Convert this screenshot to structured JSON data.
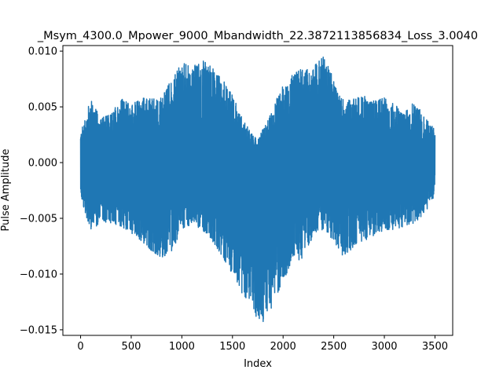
{
  "chart_data": {
    "type": "line",
    "title": "_Msym_4300.0_Mpower_9000_Mbandwidth_22.3872113856834_Loss_3.0040",
    "xlabel": "Index",
    "ylabel": "Pulse Amplitude",
    "xlim": [
      -175,
      3675
    ],
    "ylim": [
      -0.0155,
      0.0105
    ],
    "xticks": [
      0,
      500,
      1000,
      1500,
      2000,
      2500,
      3000,
      3500
    ],
    "yticks": [
      -0.015,
      -0.01,
      -0.005,
      0.0,
      0.005,
      0.01
    ],
    "xtick_labels": [
      "0",
      "500",
      "1000",
      "1500",
      "2000",
      "2500",
      "3000",
      "3500"
    ],
    "ytick_labels": [
      "−0.015",
      "−0.010",
      "−0.005",
      "0.000",
      "0.005",
      "0.010"
    ],
    "grid": false,
    "series": [
      {
        "color": "#1f77b4",
        "n_points": 3500,
        "x_range": [
          0,
          3500
        ],
        "envelope_x": [
          0,
          100,
          200,
          300,
          400,
          500,
          600,
          700,
          800,
          900,
          1000,
          1100,
          1200,
          1300,
          1400,
          1500,
          1600,
          1700,
          1750,
          1800,
          1900,
          2000,
          2100,
          2200,
          2300,
          2400,
          2500,
          2600,
          2700,
          2800,
          2900,
          3000,
          3100,
          3200,
          3300,
          3400,
          3500
        ],
        "envelope_max": [
          0.0027,
          0.0057,
          0.004,
          0.0043,
          0.0058,
          0.0053,
          0.0058,
          0.0057,
          0.0058,
          0.0075,
          0.009,
          0.0085,
          0.0093,
          0.0087,
          0.0075,
          0.006,
          0.004,
          0.0025,
          0.002,
          0.003,
          0.0048,
          0.0072,
          0.0079,
          0.0085,
          0.0086,
          0.0095,
          0.0075,
          0.0055,
          0.0057,
          0.006,
          0.0055,
          0.0058,
          0.0052,
          0.0045,
          0.0055,
          0.004,
          0.003
        ],
        "envelope_min": [
          -0.003,
          -0.0062,
          -0.0053,
          -0.0054,
          -0.0057,
          -0.0063,
          -0.007,
          -0.0079,
          -0.0085,
          -0.008,
          -0.006,
          -0.0055,
          -0.006,
          -0.007,
          -0.0084,
          -0.01,
          -0.0118,
          -0.0128,
          -0.0143,
          -0.0143,
          -0.0128,
          -0.0105,
          -0.009,
          -0.0085,
          -0.0065,
          -0.006,
          -0.007,
          -0.0085,
          -0.0075,
          -0.007,
          -0.0066,
          -0.006,
          -0.006,
          -0.0057,
          -0.0054,
          -0.0045,
          -0.003
        ]
      }
    ]
  }
}
